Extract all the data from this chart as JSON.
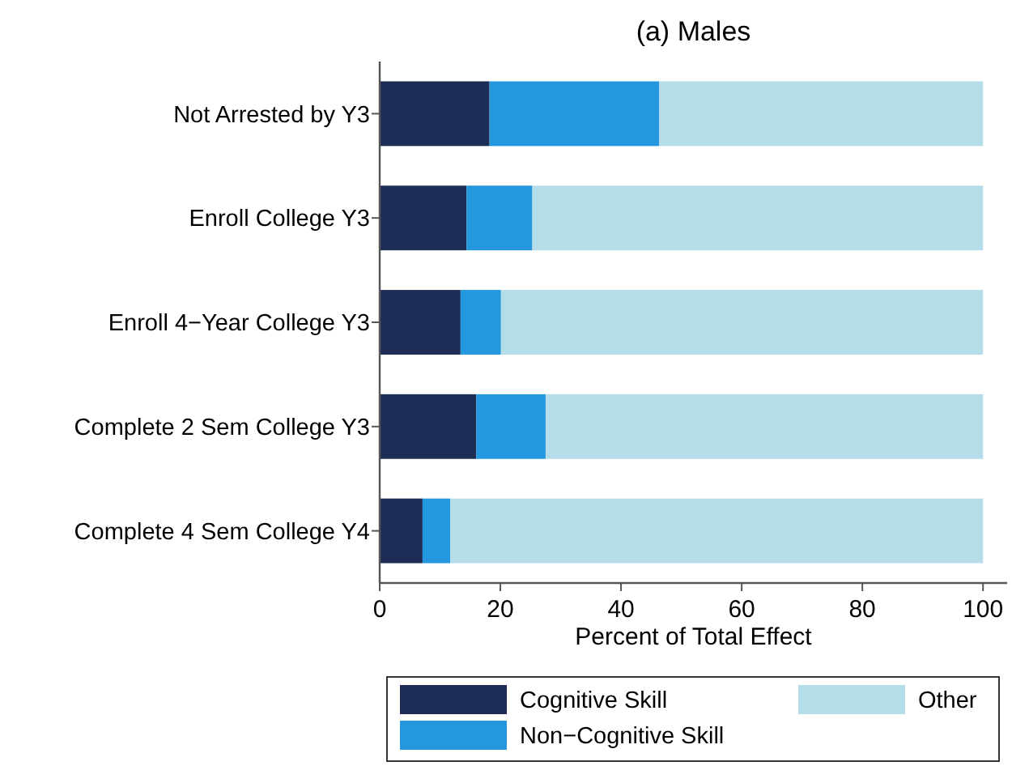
{
  "chart_data": {
    "type": "bar",
    "orientation": "horizontal",
    "stacked": true,
    "title": "(a) Males",
    "xlabel": "Percent of Total Effect",
    "categories": [
      "Not Arrested by Y3",
      "Enroll College Y3",
      "Enroll 4−Year College Y3",
      "Complete 2 Sem College Y3",
      "Complete 4 Sem College Y4"
    ],
    "series": [
      {
        "name": "Cognitive Skill",
        "color": "#1e2d55",
        "values": [
          18.2,
          14.4,
          13.4,
          16.0,
          7.1
        ]
      },
      {
        "name": "Non−Cognitive Skill",
        "color": "#2398de",
        "values": [
          28.1,
          10.9,
          6.7,
          11.5,
          4.6
        ]
      },
      {
        "name": "Other",
        "color": "#b5dce9",
        "values": [
          53.7,
          74.7,
          79.9,
          72.5,
          88.3
        ]
      }
    ],
    "xlim": [
      0,
      104
    ],
    "xticks": [
      0,
      20,
      40,
      60,
      80,
      100
    ],
    "grid": false,
    "legend": "bottom"
  }
}
